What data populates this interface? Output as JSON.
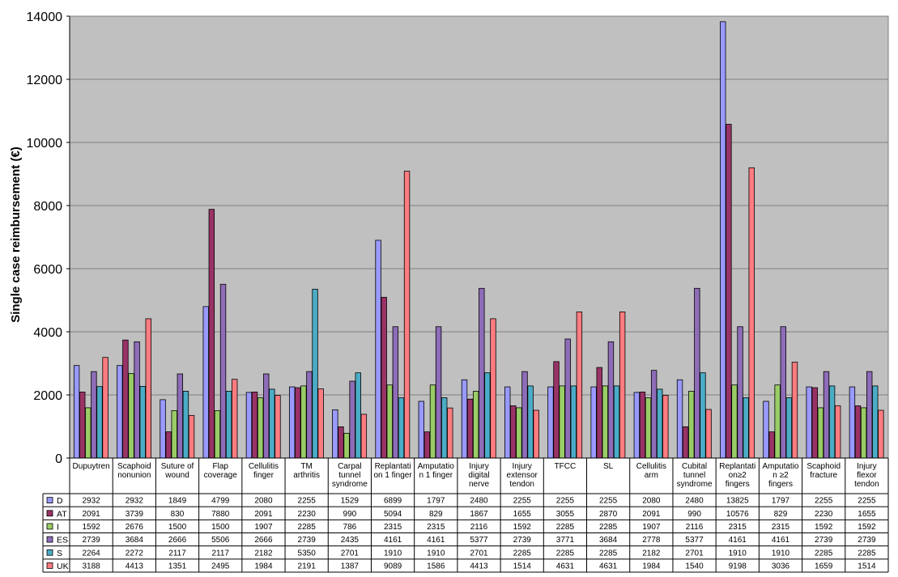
{
  "chart_data": {
    "type": "bar",
    "ylabel": "Single case reimbursement (€)",
    "ylim": [
      0,
      14000
    ],
    "ytick_step": 2000,
    "grid": true,
    "legend_placement": "data-table-left",
    "categories": [
      [
        "Dupuytren"
      ],
      [
        "Scaphoid",
        "nonunion"
      ],
      [
        "Suture of",
        "wound"
      ],
      [
        "Flap",
        "coverage"
      ],
      [
        "Cellulitis",
        "finger"
      ],
      [
        "TM",
        "arthritis"
      ],
      [
        "Carpal",
        "tunnel",
        "syndrome"
      ],
      [
        "Replantati",
        "on 1 finger"
      ],
      [
        "Amputatio",
        "n 1 finger"
      ],
      [
        "Injury",
        "digital",
        "nerve"
      ],
      [
        "Injury",
        "extensor",
        "tendon"
      ],
      [
        "TFCC"
      ],
      [
        "SL"
      ],
      [
        "Cellulitis",
        "arm"
      ],
      [
        "Cubital",
        "tunnel",
        "syndrome"
      ],
      [
        "Replantati",
        "on≥2",
        "fingers"
      ],
      [
        "Amputatio",
        "n ≥2",
        "fingers"
      ],
      [
        "Scaphoid",
        "fracture"
      ],
      [
        "Injury",
        "flexor",
        "tendon"
      ]
    ],
    "series": [
      {
        "name": "D",
        "color": "#9999ff",
        "values": [
          2932,
          2932,
          1849,
          4799,
          2080,
          2255,
          1529,
          6899,
          1797,
          2480,
          2255,
          2255,
          2255,
          2080,
          2480,
          13825,
          1797,
          2255,
          2255
        ]
      },
      {
        "name": "AT",
        "color": "#993366",
        "values": [
          2091,
          3739,
          830,
          7880,
          2091,
          2230,
          990,
          5094,
          829,
          1867,
          1655,
          3055,
          2870,
          2091,
          990,
          10576,
          829,
          2230,
          1655
        ]
      },
      {
        "name": "I",
        "color": "#99cc66",
        "values": [
          1592,
          2676,
          1500,
          1500,
          1907,
          2285,
          786,
          2315,
          2315,
          2116,
          1592,
          2285,
          2285,
          1907,
          2116,
          2315,
          2315,
          1592,
          1592
        ]
      },
      {
        "name": "ES",
        "color": "#8e6cb8",
        "values": [
          2739,
          3684,
          2666,
          5506,
          2666,
          2739,
          2435,
          4161,
          4161,
          5377,
          2739,
          3771,
          3684,
          2778,
          5377,
          4161,
          4161,
          2739,
          2739
        ]
      },
      {
        "name": "S",
        "color": "#4bacc6",
        "values": [
          2264,
          2272,
          2117,
          2117,
          2182,
          5350,
          2701,
          1910,
          1910,
          2701,
          2285,
          2285,
          2285,
          2182,
          2701,
          1910,
          1910,
          2285,
          2285
        ]
      },
      {
        "name": "UK",
        "color": "#ff7c80",
        "values": [
          3188,
          4413,
          1351,
          2495,
          1984,
          2191,
          1387,
          9089,
          1586,
          4413,
          1514,
          4631,
          4631,
          1984,
          1540,
          9198,
          3036,
          1659,
          1514
        ]
      }
    ],
    "table": [
      [
        "2932",
        "2932",
        "1849",
        "4799",
        "2080",
        "2255",
        "1529",
        "6899",
        "1797",
        "2480",
        "2255",
        "2255",
        "2255",
        "2080",
        "2480",
        "13825",
        "1797",
        "2255",
        "2255"
      ],
      [
        "2091",
        "3739",
        "830",
        "7880",
        "2091",
        "2230",
        "990",
        "5094",
        "829",
        "1867",
        "1655",
        "3055",
        "2870",
        "2091",
        "990",
        "10576",
        "829",
        "2230",
        "1655"
      ],
      [
        "1592",
        "2676",
        "1500",
        "1500",
        "1907",
        "2285",
        "786",
        "2315",
        "2315",
        "2116",
        "1592",
        "2285",
        "2285",
        "1907",
        "2116",
        "2315",
        "2315",
        "1592",
        "1592"
      ],
      [
        "2739",
        "3684",
        "2666",
        "5506",
        "2666",
        "2739",
        "2435",
        "4161",
        "4161",
        "5377",
        "2739",
        "3771",
        "3684",
        "2778",
        "5377",
        "4161",
        "4161",
        "2739",
        "2739"
      ],
      [
        "2264",
        "2272",
        "2117",
        "2117",
        "2182",
        "5350",
        "2701",
        "1910",
        "1910",
        "2701",
        "2285",
        "2285",
        "2285",
        "2182",
        "2701",
        "1910",
        "1910",
        "2285",
        "2285"
      ],
      [
        "3188",
        "4413",
        "1351",
        "2495",
        "1984",
        "2191",
        "1387",
        "9089",
        "1586",
        "4413",
        "1514",
        "4631",
        "4631",
        "1984",
        "1540",
        "9198",
        "3036",
        "1659",
        "1514"
      ]
    ]
  }
}
